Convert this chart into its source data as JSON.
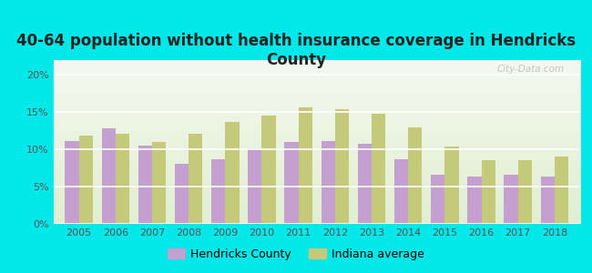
{
  "title": "40-64 population without health insurance coverage in Hendricks\nCounty",
  "years": [
    2005,
    2006,
    2007,
    2008,
    2009,
    2010,
    2011,
    2012,
    2013,
    2014,
    2015,
    2016,
    2017,
    2018
  ],
  "hendricks": [
    11.1,
    12.8,
    10.5,
    8.1,
    8.7,
    10.2,
    11.0,
    11.1,
    10.8,
    8.7,
    6.6,
    6.4,
    6.6,
    6.3
  ],
  "indiana": [
    11.9,
    12.1,
    11.0,
    12.1,
    13.7,
    14.5,
    15.7,
    15.4,
    14.8,
    12.9,
    10.4,
    8.6,
    8.6,
    9.0
  ],
  "hendricks_color": "#c4a0d0",
  "indiana_color": "#c5ca7a",
  "background_outer": "#00e8e8",
  "background_plot_top": "#f5f8f0",
  "background_plot_bottom": "#e0efd0",
  "title_color": "#222222",
  "title_fontsize": 12,
  "bar_width": 0.38,
  "ylim": [
    0,
    22
  ],
  "yticks": [
    0,
    5,
    10,
    15,
    20
  ],
  "ytick_labels": [
    "0%",
    "5%",
    "10%",
    "15%",
    "20%"
  ],
  "legend_hendricks": "Hendricks County",
  "legend_indiana": "Indiana average",
  "watermark": "City-Data.com"
}
